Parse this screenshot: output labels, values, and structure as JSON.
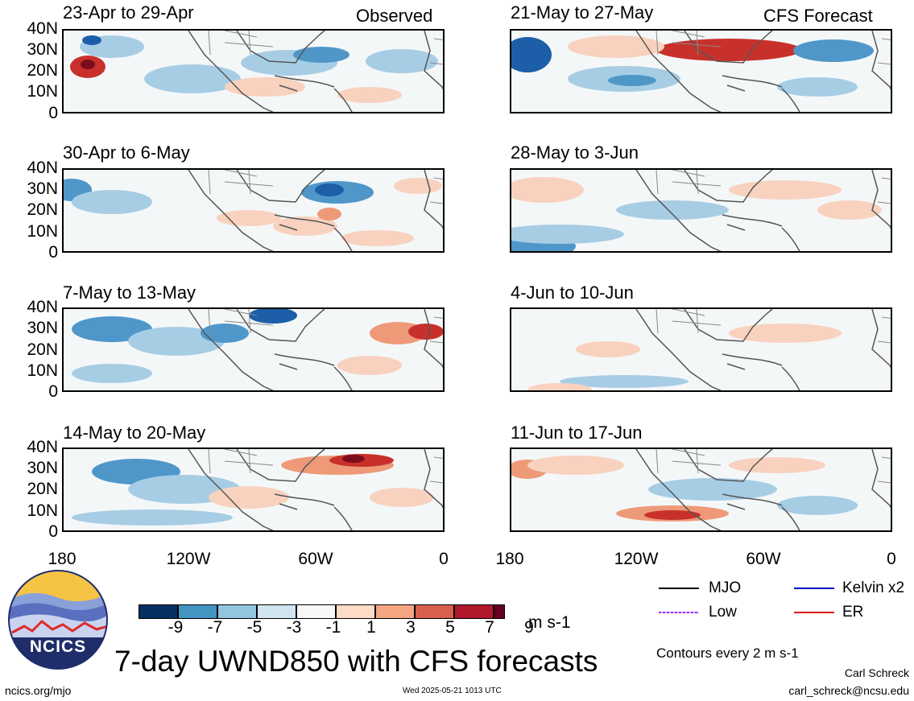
{
  "headers": {
    "observed": "Observed",
    "forecast": "CFS Forecast"
  },
  "panels": [
    {
      "id": "p1",
      "col": "left",
      "title": "23-Apr to 29-Apr"
    },
    {
      "id": "p2",
      "col": "left",
      "title": "30-Apr to 6-May"
    },
    {
      "id": "p3",
      "col": "left",
      "title": "7-May to 13-May"
    },
    {
      "id": "p4",
      "col": "left",
      "title": "14-May to 20-May"
    },
    {
      "id": "p5",
      "col": "right",
      "title": "21-May to 27-May"
    },
    {
      "id": "p6",
      "col": "right",
      "title": "28-May to 3-Jun"
    },
    {
      "id": "p7",
      "col": "right",
      "title": "4-Jun to 10-Jun"
    },
    {
      "id": "p8",
      "col": "right",
      "title": "11-Jun to 17-Jun"
    }
  ],
  "lat_labels": [
    "40N",
    "30N",
    "20N",
    "10N",
    "0"
  ],
  "lon_labels": [
    "180",
    "120W",
    "60W",
    "0"
  ],
  "colorbar": {
    "ticks": [
      "-9",
      "-7",
      "-5",
      "-3",
      "-1",
      "1",
      "3",
      "5",
      "7",
      "9"
    ],
    "colors": [
      "#053061",
      "#2166ac",
      "#4393c3",
      "#92c5de",
      "#d1e5f0",
      "#f7f7f7",
      "#fddbc7",
      "#f4a582",
      "#d6604d",
      "#b2182b",
      "#67001f"
    ],
    "units": "m s-1"
  },
  "legend": [
    {
      "label": "MJO",
      "color": "#000000"
    },
    {
      "label": "Kelvin x2",
      "color": "#0000cc"
    },
    {
      "label": "Low",
      "color": "#9b30ff"
    },
    {
      "label": "ER",
      "color": "#e01010"
    }
  ],
  "contour_note": "Contours every 2 m s-1",
  "title": "7-day UWND850 with CFS forecasts",
  "logo_text": "NCICS",
  "url": "ncics.org/mjo",
  "timestamp": "Wed 2025-05-21 1013 UTC",
  "author": "Carl Schreck",
  "email": "carl_schreck@ncsu.edu"
}
